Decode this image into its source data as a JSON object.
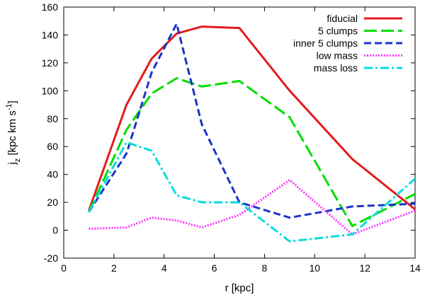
{
  "chart_data": {
    "type": "line",
    "xlabel": "r [kpc]",
    "ylabel": {
      "base": "j",
      "sub": "z",
      "unit_text": " [kpc km s",
      "unit_sup": "-1",
      "unit_close": "]"
    },
    "xlim": [
      0,
      14
    ],
    "ylim": [
      -20,
      160
    ],
    "xticks": [
      0,
      2,
      4,
      6,
      8,
      10,
      12,
      14
    ],
    "yticks": [
      -20,
      0,
      20,
      40,
      60,
      80,
      100,
      120,
      140,
      160
    ],
    "grid": false,
    "legend_position": "top-right",
    "series": [
      {
        "name": "fiducial",
        "color": "#e41a1c",
        "dash": "solid",
        "x": [
          1.0,
          2.5,
          3.5,
          4.5,
          5.5,
          7.0,
          9.0,
          11.5,
          14.0
        ],
        "y": [
          14,
          90,
          123,
          141,
          146,
          145,
          100,
          51,
          15
        ]
      },
      {
        "name": "5 clumps",
        "color": "#00dd00",
        "dash": "long-dash",
        "x": [
          1.0,
          2.5,
          3.5,
          4.5,
          5.5,
          7.0,
          9.0,
          11.5,
          14.0
        ],
        "y": [
          13,
          72,
          98,
          109,
          103,
          107,
          81,
          3,
          26
        ]
      },
      {
        "name": "inner 5 clumps",
        "color": "#1a33cc",
        "dash": "dash",
        "x": [
          1.0,
          2.5,
          3.5,
          4.5,
          5.5,
          7.0,
          9.0,
          11.5,
          14.0
        ],
        "y": [
          13,
          55,
          113,
          148,
          76,
          20,
          9,
          17,
          19
        ]
      },
      {
        "name": "low mass",
        "color": "#ff33ff",
        "dash": "dot",
        "x": [
          1.0,
          2.5,
          3.5,
          4.5,
          5.5,
          7.0,
          9.0,
          11.5,
          14.0
        ],
        "y": [
          1,
          2,
          9,
          7,
          2,
          11,
          36,
          -3,
          14
        ]
      },
      {
        "name": "mass loss",
        "color": "#00dddd",
        "dash": "dash-dot",
        "x": [
          1.0,
          2.5,
          3.5,
          4.5,
          5.5,
          7.0,
          9.0,
          11.5,
          14.0
        ],
        "y": [
          13,
          63,
          57,
          25,
          20,
          20,
          -8,
          -3,
          37
        ]
      }
    ]
  }
}
